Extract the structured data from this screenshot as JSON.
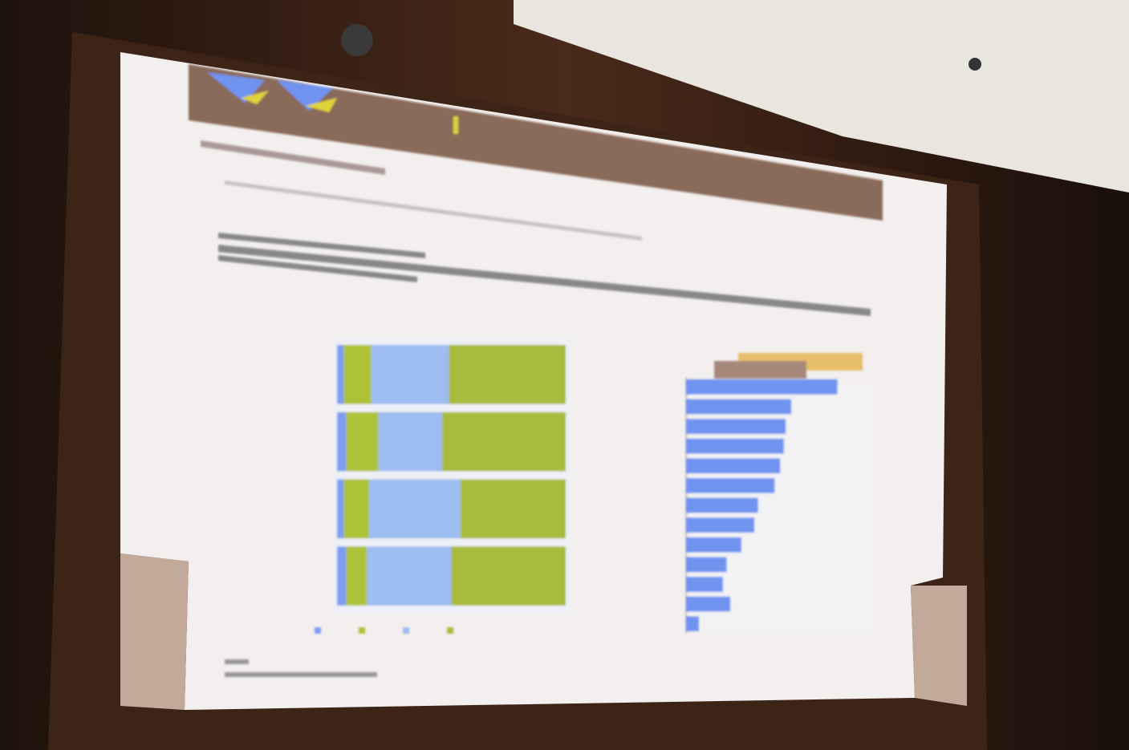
{
  "chart_data": [
    {
      "type": "stacked-bar",
      "categories": [
        null,
        null,
        null,
        null
      ],
      "series": [
        {
          "color": "#7f9ef0",
          "values": [
            3,
            4,
            3,
            4
          ]
        },
        {
          "color": "#aec238",
          "values": [
            12,
            14,
            11,
            9
          ]
        },
        {
          "color": "#9dbcef",
          "values": [
            34,
            28,
            40,
            37
          ]
        },
        {
          "color": "#a8bb3c",
          "values": [
            51,
            54,
            46,
            50
          ]
        }
      ],
      "xlim": [
        0,
        100
      ]
    },
    {
      "type": "bar",
      "categories": [
        null,
        null,
        null,
        null,
        null,
        null,
        null,
        null,
        null,
        null,
        null,
        null,
        null
      ],
      "values": [
        82,
        57,
        54,
        53,
        51,
        48,
        39,
        37,
        30,
        22,
        20,
        24,
        7
      ],
      "color": "#6f93f0",
      "xlim": [
        0,
        100
      ]
    }
  ]
}
